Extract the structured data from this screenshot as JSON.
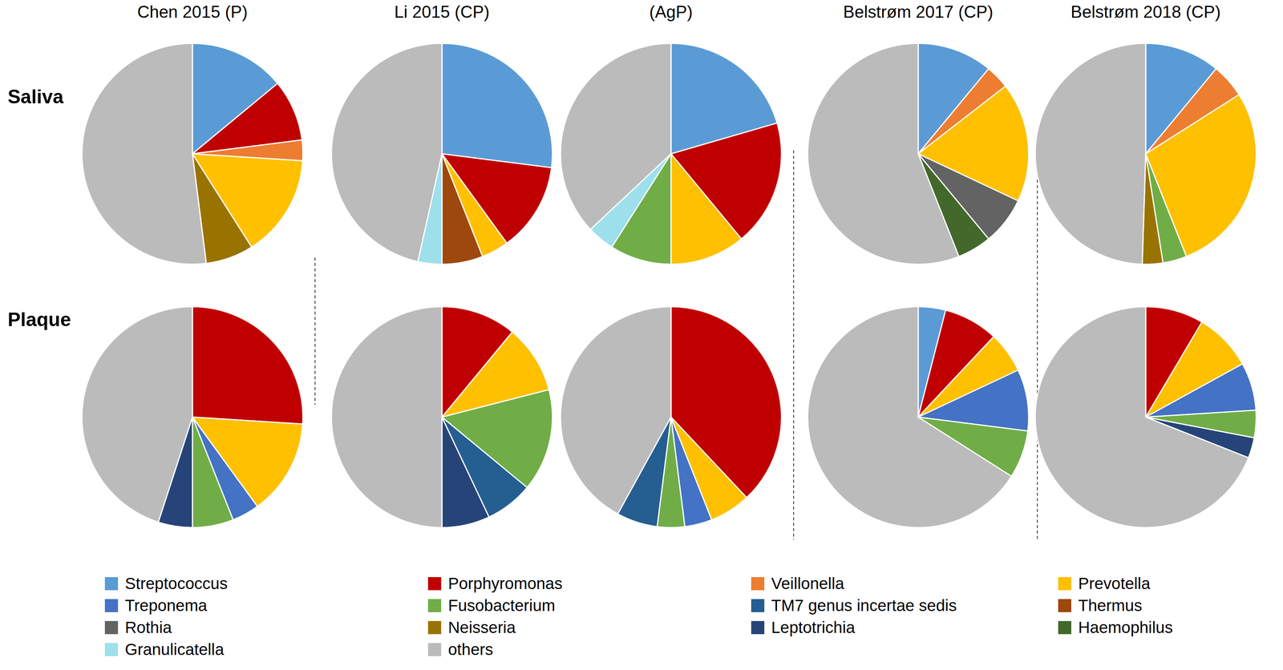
{
  "columns": [
    "Chen 2015 (P)",
    "Li 2015 (CP)",
    "(AgP)",
    "Belstrøm 2017 (CP)",
    "Belstrøm 2018 (CP)"
  ],
  "rows": [
    "Saliva",
    "Plaque"
  ],
  "legend_entries": [
    {
      "name": "Streptococcus",
      "color": "#5B9BD5"
    },
    {
      "name": "Porphyromonas",
      "color": "#C00000"
    },
    {
      "name": "Veillonella",
      "color": "#ED7D31"
    },
    {
      "name": "Prevotella",
      "color": "#FFC000"
    },
    {
      "name": "Treponema",
      "color": "#4472C4"
    },
    {
      "name": "Fusobacterium",
      "color": "#70AD47"
    },
    {
      "name": "TM7 genus incertae sedis",
      "color": "#255E91"
    },
    {
      "name": "Thermus",
      "color": "#9E480E"
    },
    {
      "name": "Rothia",
      "color": "#636363"
    },
    {
      "name": "Neisseria",
      "color": "#997300"
    },
    {
      "name": "Leptotrichia",
      "color": "#264478"
    },
    {
      "name": "Haemophilus",
      "color": "#43682B"
    },
    {
      "name": "Granulicatella",
      "color": "#9DE0EC"
    },
    {
      "name": "others",
      "color": "#BBBBBB"
    }
  ],
  "chart_data": [
    {
      "type": "pie",
      "categories": [
        "Streptococcus",
        "Porphyromonas",
        "Veillonella",
        "Prevotella",
        "Neisseria",
        "others"
      ],
      "values": [
        14,
        9,
        3,
        15,
        7,
        52
      ],
      "colors": [
        "#5B9BD5",
        "#C00000",
        "#ED7D31",
        "#FFC000",
        "#997300",
        "#BBBBBB"
      ]
    },
    {
      "type": "pie",
      "categories": [
        "Streptococcus",
        "Porphyromonas",
        "Prevotella",
        "Thermus",
        "Granulicatella",
        "others"
      ],
      "values": [
        27,
        13,
        4,
        6,
        3.5,
        46.5
      ],
      "colors": [
        "#5B9BD5",
        "#C00000",
        "#FFC000",
        "#9E480E",
        "#9DE0EC",
        "#BBBBBB"
      ]
    },
    {
      "type": "pie",
      "categories": [
        "Streptococcus",
        "Porphyromonas",
        "Prevotella",
        "Fusobacterium",
        "Granulicatella",
        "others"
      ],
      "values": [
        20.5,
        18.5,
        11,
        9,
        4,
        37
      ],
      "colors": [
        "#5B9BD5",
        "#C00000",
        "#FFC000",
        "#70AD47",
        "#9DE0EC",
        "#BBBBBB"
      ]
    },
    {
      "type": "pie",
      "categories": [
        "Streptococcus",
        "Veillonella",
        "Prevotella",
        "Rothia",
        "Haemophilus",
        "others"
      ],
      "values": [
        11,
        3.5,
        17.5,
        7,
        5,
        56
      ],
      "colors": [
        "#5B9BD5",
        "#ED7D31",
        "#FFC000",
        "#636363",
        "#43682B",
        "#BBBBBB"
      ]
    },
    {
      "type": "pie",
      "categories": [
        "Streptococcus",
        "Veillonella",
        "Prevotella",
        "Fusobacterium",
        "Neisseria",
        "others"
      ],
      "values": [
        11,
        5,
        28,
        3.5,
        3,
        49.5
      ],
      "colors": [
        "#5B9BD5",
        "#ED7D31",
        "#FFC000",
        "#70AD47",
        "#997300",
        "#BBBBBB"
      ]
    },
    {
      "type": "pie",
      "categories": [
        "Porphyromonas",
        "Prevotella",
        "Treponema",
        "Fusobacterium",
        "Leptotrichia",
        "others"
      ],
      "values": [
        26,
        14,
        4,
        6,
        5,
        45
      ],
      "colors": [
        "#C00000",
        "#FFC000",
        "#4472C4",
        "#70AD47",
        "#264478",
        "#BBBBBB"
      ]
    },
    {
      "type": "pie",
      "categories": [
        "Porphyromonas",
        "Prevotella",
        "Fusobacterium",
        "TM7 genus incertae sedis",
        "Leptotrichia",
        "others"
      ],
      "values": [
        11,
        10,
        15,
        7,
        7,
        50
      ],
      "colors": [
        "#C00000",
        "#FFC000",
        "#70AD47",
        "#255E91",
        "#264478",
        "#BBBBBB"
      ]
    },
    {
      "type": "pie",
      "categories": [
        "Porphyromonas",
        "Prevotella",
        "Treponema",
        "Fusobacterium",
        "TM7 genus incertae sedis",
        "others"
      ],
      "values": [
        38,
        6,
        4,
        4,
        6,
        42
      ],
      "colors": [
        "#C00000",
        "#FFC000",
        "#4472C4",
        "#70AD47",
        "#255E91",
        "#BBBBBB"
      ]
    },
    {
      "type": "pie",
      "categories": [
        "Streptococcus",
        "Porphyromonas",
        "Prevotella",
        "Treponema",
        "Fusobacterium",
        "others"
      ],
      "values": [
        4,
        8,
        6,
        9,
        7,
        66
      ],
      "colors": [
        "#5B9BD5",
        "#C00000",
        "#FFC000",
        "#4472C4",
        "#70AD47",
        "#BBBBBB"
      ]
    },
    {
      "type": "pie",
      "categories": [
        "Porphyromonas",
        "Prevotella",
        "Treponema",
        "Fusobacterium",
        "Leptotrichia",
        "others"
      ],
      "values": [
        8.5,
        8.5,
        7,
        4,
        3,
        69
      ],
      "colors": [
        "#C00000",
        "#FFC000",
        "#4472C4",
        "#70AD47",
        "#264478",
        "#BBBBBB"
      ]
    }
  ]
}
